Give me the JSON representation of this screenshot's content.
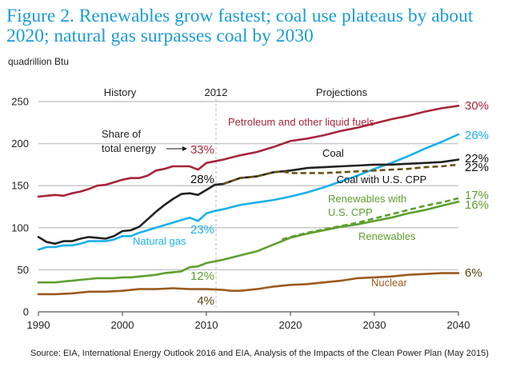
{
  "title": "Figure 2. Renewables grow fastest; coal use plateaus by about 2020; natural gas surpasses coal by 2030",
  "unit_label": "quadrillion Btu",
  "source": "Source:  EIA, International Energy Outlook 2016 and EIA, Analysis of the Impacts of the Clean Power Plan (May 2015)",
  "chart_data": {
    "type": "line",
    "title": "Figure 2. Renewables grow fastest; coal use plateaus by about 2020; natural gas surpasses coal by 2030",
    "xlabel": "",
    "ylabel": "quadrillion Btu",
    "xlim": [
      1990,
      2040
    ],
    "ylim": [
      0,
      250
    ],
    "x_ticks": [
      "1990",
      "2000",
      "2010",
      "2020",
      "2030",
      "2040"
    ],
    "y_ticks": [
      "0",
      "50",
      "100",
      "150",
      "200",
      "250"
    ],
    "grid": "horizontal",
    "divider_year": 2012,
    "divider_label": "2012",
    "section_labels": {
      "history": "History",
      "projections": "Projections"
    },
    "share_note": "Share of\ntotal energy",
    "share_note_lines": [
      "Share of",
      "total energy"
    ],
    "series": [
      {
        "name": "Petroleum and other liquid fuels",
        "color": "#a6263a",
        "style": "solid",
        "points": [
          [
            1990,
            137
          ],
          [
            1991,
            138
          ],
          [
            1992,
            139
          ],
          [
            1993,
            138
          ],
          [
            1994,
            141
          ],
          [
            1995,
            143
          ],
          [
            1996,
            146
          ],
          [
            1997,
            150
          ],
          [
            1998,
            151
          ],
          [
            1999,
            154
          ],
          [
            2000,
            157
          ],
          [
            2001,
            159
          ],
          [
            2002,
            159
          ],
          [
            2003,
            162
          ],
          [
            2004,
            168
          ],
          [
            2005,
            170
          ],
          [
            2006,
            173
          ],
          [
            2007,
            173
          ],
          [
            2008,
            173
          ],
          [
            2009,
            169
          ],
          [
            2010,
            177
          ],
          [
            2011,
            179
          ],
          [
            2012,
            181
          ],
          [
            2014,
            186
          ],
          [
            2016,
            190
          ],
          [
            2018,
            196
          ],
          [
            2020,
            203
          ],
          [
            2022,
            206
          ],
          [
            2024,
            210
          ],
          [
            2026,
            215
          ],
          [
            2028,
            219
          ],
          [
            2030,
            224
          ],
          [
            2032,
            229
          ],
          [
            2034,
            233
          ],
          [
            2036,
            238
          ],
          [
            2038,
            242
          ],
          [
            2040,
            245
          ]
        ],
        "start_share": "33%",
        "end_share": "30%"
      },
      {
        "name": "Natural gas",
        "color": "#1ab0eb",
        "style": "solid",
        "points": [
          [
            1990,
            74
          ],
          [
            1991,
            77
          ],
          [
            1992,
            77
          ],
          [
            1993,
            79
          ],
          [
            1994,
            79
          ],
          [
            1995,
            81
          ],
          [
            1996,
            84
          ],
          [
            1997,
            84
          ],
          [
            1998,
            84
          ],
          [
            1999,
            86
          ],
          [
            2000,
            90
          ],
          [
            2001,
            90
          ],
          [
            2002,
            94
          ],
          [
            2003,
            97
          ],
          [
            2004,
            100
          ],
          [
            2005,
            103
          ],
          [
            2006,
            106
          ],
          [
            2007,
            109
          ],
          [
            2008,
            112
          ],
          [
            2009,
            108
          ],
          [
            2010,
            117
          ],
          [
            2011,
            120
          ],
          [
            2012,
            122
          ],
          [
            2014,
            127
          ],
          [
            2016,
            130
          ],
          [
            2018,
            133
          ],
          [
            2020,
            137
          ],
          [
            2022,
            142
          ],
          [
            2024,
            148
          ],
          [
            2026,
            155
          ],
          [
            2028,
            162
          ],
          [
            2030,
            170
          ],
          [
            2032,
            177
          ],
          [
            2034,
            185
          ],
          [
            2036,
            194
          ],
          [
            2038,
            202
          ],
          [
            2040,
            211
          ]
        ],
        "start_share": "23%",
        "end_share": "26%"
      },
      {
        "name": "Coal",
        "color": "#222222",
        "style": "solid",
        "points": [
          [
            1990,
            89
          ],
          [
            1991,
            83
          ],
          [
            1992,
            81
          ],
          [
            1993,
            84
          ],
          [
            1994,
            84
          ],
          [
            1995,
            87
          ],
          [
            1996,
            89
          ],
          [
            1997,
            88
          ],
          [
            1998,
            87
          ],
          [
            1999,
            90
          ],
          [
            2000,
            96
          ],
          [
            2001,
            97
          ],
          [
            2002,
            101
          ],
          [
            2003,
            110
          ],
          [
            2004,
            119
          ],
          [
            2005,
            127
          ],
          [
            2006,
            134
          ],
          [
            2007,
            140
          ],
          [
            2008,
            141
          ],
          [
            2009,
            139
          ],
          [
            2010,
            145
          ],
          [
            2011,
            151
          ],
          [
            2012,
            152
          ],
          [
            2014,
            159
          ],
          [
            2016,
            161
          ],
          [
            2018,
            166
          ],
          [
            2020,
            168
          ],
          [
            2022,
            171
          ],
          [
            2024,
            172
          ],
          [
            2026,
            173
          ],
          [
            2028,
            174
          ],
          [
            2030,
            175
          ],
          [
            2032,
            175
          ],
          [
            2034,
            176
          ],
          [
            2036,
            177
          ],
          [
            2038,
            178
          ],
          [
            2040,
            181
          ]
        ],
        "start_share": "28%",
        "end_share": "22%"
      },
      {
        "name": "Coal with U.S. CPP",
        "color": "#6b5210",
        "style": "dashed",
        "points": [
          [
            2012,
            152
          ],
          [
            2014,
            159
          ],
          [
            2016,
            161
          ],
          [
            2018,
            166
          ],
          [
            2019,
            167
          ],
          [
            2020,
            165
          ],
          [
            2022,
            165
          ],
          [
            2024,
            165
          ],
          [
            2026,
            166
          ],
          [
            2028,
            167
          ],
          [
            2030,
            168
          ],
          [
            2032,
            169
          ],
          [
            2034,
            170
          ],
          [
            2036,
            172
          ],
          [
            2038,
            173
          ],
          [
            2040,
            175
          ]
        ],
        "end_share": "22%"
      },
      {
        "name": "Renewables with U.S. CPP",
        "color": "#5e9e2f",
        "style": "dashed",
        "points": [
          [
            2019,
            86
          ],
          [
            2020,
            89
          ],
          [
            2022,
            94
          ],
          [
            2024,
            98
          ],
          [
            2026,
            102
          ],
          [
            2028,
            106
          ],
          [
            2030,
            111
          ],
          [
            2032,
            116
          ],
          [
            2034,
            121
          ],
          [
            2036,
            126
          ],
          [
            2038,
            130
          ],
          [
            2040,
            135
          ]
        ],
        "end_share": "17%"
      },
      {
        "name": "Renewables",
        "color": "#5e9e2f",
        "style": "solid",
        "points": [
          [
            1990,
            35
          ],
          [
            1991,
            35
          ],
          [
            1992,
            35
          ],
          [
            1993,
            36
          ],
          [
            1994,
            37
          ],
          [
            1995,
            38
          ],
          [
            1996,
            39
          ],
          [
            1997,
            40
          ],
          [
            1998,
            40
          ],
          [
            1999,
            40
          ],
          [
            2000,
            41
          ],
          [
            2001,
            41
          ],
          [
            2002,
            42
          ],
          [
            2003,
            43
          ],
          [
            2004,
            44
          ],
          [
            2005,
            46
          ],
          [
            2006,
            47
          ],
          [
            2007,
            48
          ],
          [
            2008,
            53
          ],
          [
            2009,
            54
          ],
          [
            2010,
            58
          ],
          [
            2011,
            60
          ],
          [
            2012,
            62
          ],
          [
            2014,
            67
          ],
          [
            2016,
            72
          ],
          [
            2018,
            80
          ],
          [
            2020,
            88
          ],
          [
            2022,
            93
          ],
          [
            2024,
            97
          ],
          [
            2026,
            101
          ],
          [
            2028,
            104
          ],
          [
            2030,
            108
          ],
          [
            2032,
            112
          ],
          [
            2034,
            117
          ],
          [
            2036,
            121
          ],
          [
            2038,
            126
          ],
          [
            2040,
            131
          ]
        ],
        "start_share": "12%",
        "end_share": "16%"
      },
      {
        "name": "Nuclear",
        "color": "#9a5a1e",
        "style": "solid",
        "points": [
          [
            1990,
            21
          ],
          [
            1992,
            21
          ],
          [
            1994,
            22
          ],
          [
            1996,
            24
          ],
          [
            1998,
            24
          ],
          [
            2000,
            25
          ],
          [
            2002,
            27
          ],
          [
            2004,
            27
          ],
          [
            2006,
            28
          ],
          [
            2008,
            27
          ],
          [
            2010,
            27
          ],
          [
            2012,
            26
          ],
          [
            2013,
            25
          ],
          [
            2014,
            25
          ],
          [
            2016,
            27
          ],
          [
            2018,
            30
          ],
          [
            2020,
            32
          ],
          [
            2022,
            33
          ],
          [
            2024,
            35
          ],
          [
            2026,
            37
          ],
          [
            2028,
            40
          ],
          [
            2030,
            41
          ],
          [
            2032,
            42
          ],
          [
            2034,
            44
          ],
          [
            2036,
            45
          ],
          [
            2038,
            46
          ],
          [
            2040,
            46
          ]
        ],
        "start_share": "4%",
        "end_share": "6%"
      }
    ]
  }
}
